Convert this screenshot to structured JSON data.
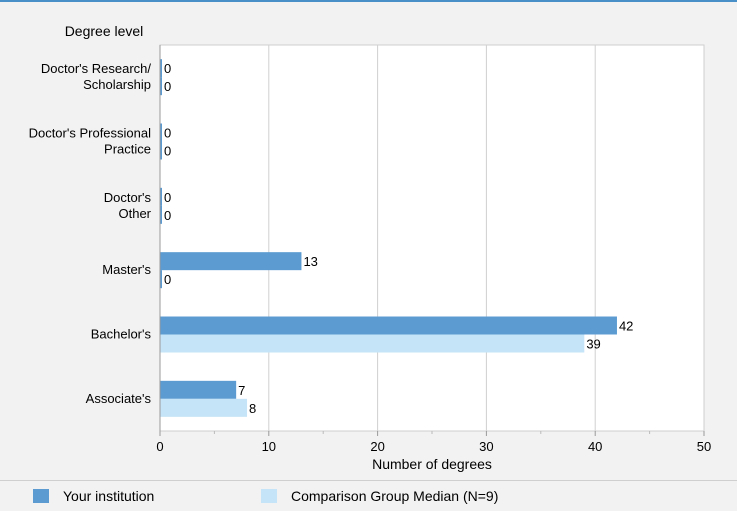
{
  "chart_data": {
    "type": "bar",
    "orientation": "horizontal",
    "title": "",
    "ylabel": "Degree level",
    "xlabel": "Number of degrees",
    "categories": [
      "Doctor's Research/\nScholarship",
      "Doctor's Professional\nPractice",
      "Doctor's\nOther",
      "Master's",
      "Bachelor's",
      "Associate's"
    ],
    "series": [
      {
        "name": "Your institution",
        "values": [
          0,
          0,
          0,
          13,
          42,
          7
        ],
        "color": "#5b9bd1"
      },
      {
        "name": "Comparison Group Median (N=9)",
        "values": [
          0,
          0,
          0,
          0,
          39,
          8
        ],
        "color": "#c5e4f7"
      }
    ],
    "xlim": [
      0,
      50
    ],
    "xticks": [
      0,
      10,
      20,
      30,
      40,
      50
    ],
    "grid": true,
    "legend_position": "bottom"
  }
}
